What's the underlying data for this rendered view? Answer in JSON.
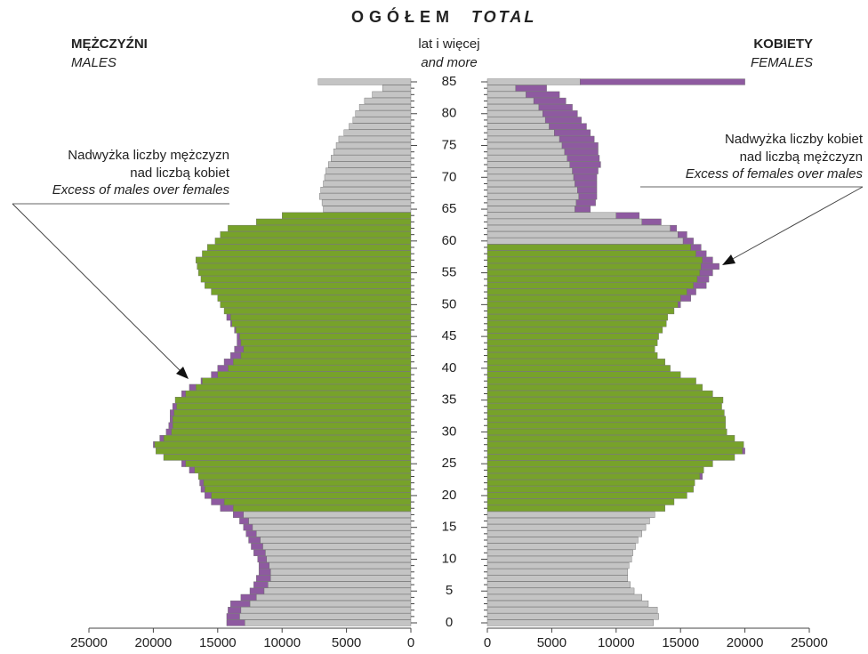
{
  "chart_data": {
    "type": "population_pyramid",
    "title": "OGÓŁEM",
    "title_en": "TOTAL",
    "age_label": "lat i więcej",
    "age_label_en": "and more",
    "categories": [
      0,
      null,
      null,
      null,
      null,
      5,
      null,
      null,
      null,
      null,
      10,
      null,
      null,
      null,
      null,
      15,
      null,
      null,
      null,
      null,
      20,
      null,
      null,
      null,
      null,
      25,
      null,
      null,
      null,
      null,
      30,
      null,
      null,
      null,
      null,
      35,
      null,
      null,
      null,
      null,
      40,
      null,
      null,
      null,
      null,
      45,
      null,
      null,
      null,
      null,
      50,
      null,
      null,
      null,
      null,
      55,
      null,
      null,
      null,
      null,
      60,
      null,
      null,
      null,
      null,
      65,
      null,
      null,
      null,
      null,
      70,
      null,
      null,
      null,
      null,
      75,
      null,
      null,
      null,
      null,
      80,
      null,
      null,
      null,
      null,
      85
    ],
    "xlim": [
      0,
      25000
    ],
    "xticks": [
      0,
      5000,
      10000,
      15000,
      20000,
      25000
    ],
    "excess_color": "#8e5aa0",
    "series": [
      {
        "name": "MĘŻCZYŹNI",
        "name_en": "MALES",
        "side": "left",
        "color": "#c4c4c4",
        "highlight_color": "#77a22a",
        "highlight_range": [
          18,
          64
        ],
        "values": [
          14300,
          14300,
          14200,
          14000,
          13200,
          12500,
          12200,
          12000,
          11800,
          11800,
          11900,
          12200,
          12400,
          12600,
          12800,
          13000,
          13300,
          13800,
          14800,
          15500,
          16000,
          16300,
          16400,
          16500,
          17200,
          17800,
          19200,
          19800,
          20000,
          19500,
          19000,
          18800,
          18700,
          18700,
          18500,
          18300,
          17800,
          17200,
          16300,
          15500,
          15000,
          14500,
          14000,
          13700,
          13500,
          13500,
          13700,
          14000,
          14300,
          14500,
          14800,
          15000,
          15500,
          16000,
          16300,
          16500,
          16600,
          16700,
          16200,
          15800,
          15200,
          14800,
          14200,
          12000,
          10000,
          6800,
          6900,
          7100,
          7000,
          6800,
          6700,
          6600,
          6400,
          6200,
          6000,
          5800,
          5600,
          5200,
          4800,
          4500,
          4300,
          4000,
          3600,
          3000,
          2200,
          7200
        ]
      },
      {
        "name": "KOBIETY",
        "name_en": "FEMALES",
        "side": "right",
        "color": "#c4c4c4",
        "highlight_color": "#77a22a",
        "highlight_range": [
          18,
          59
        ],
        "values": [
          12900,
          13300,
          13200,
          12500,
          12000,
          11400,
          11100,
          10900,
          10900,
          11000,
          11200,
          11300,
          11500,
          11700,
          12000,
          12300,
          12600,
          13000,
          13800,
          14500,
          15500,
          16000,
          16100,
          16700,
          16800,
          17500,
          19200,
          20000,
          19900,
          19200,
          18600,
          18500,
          18500,
          18400,
          18200,
          18300,
          17500,
          16700,
          16200,
          15000,
          14200,
          13800,
          13200,
          13000,
          13200,
          13300,
          13600,
          13900,
          14000,
          14500,
          15000,
          15800,
          16200,
          17000,
          17200,
          17500,
          18000,
          17500,
          17000,
          16600,
          16000,
          15500,
          14700,
          13500,
          11800,
          8000,
          8400,
          8500,
          8500,
          8500,
          8500,
          8600,
          8800,
          8700,
          8600,
          8600,
          8300,
          8000,
          7700,
          7300,
          7000,
          6600,
          6100,
          5600,
          4600,
          20000
        ]
      }
    ],
    "annotations": [
      {
        "side": "left",
        "lines": [
          "Nadwyżka liczby mężczyzn",
          "nad liczbą kobiet"
        ],
        "line_en": "Excess of males over females"
      },
      {
        "side": "right",
        "lines": [
          "Nadwyżka liczby kobiet",
          "nad liczbą mężczyzn"
        ],
        "line_en": "Excess of females over males"
      }
    ]
  }
}
